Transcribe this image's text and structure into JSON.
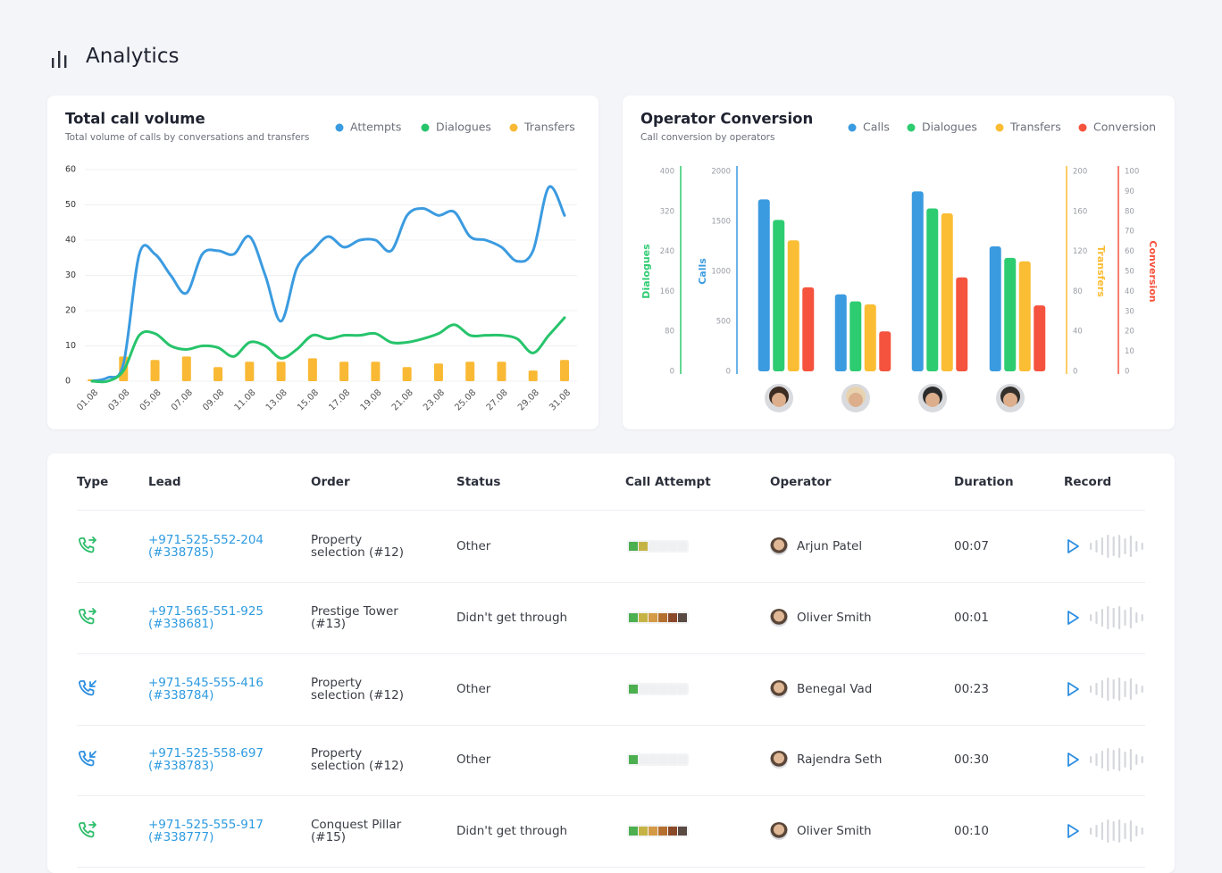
{
  "header": {
    "title": "Analytics"
  },
  "chart_data": [
    {
      "type": "line",
      "title": "Total call volume",
      "subtitle": "Total volume of calls by conversations and transfers",
      "categories": [
        "01.08",
        null,
        "03.08",
        null,
        "05.08",
        null,
        "07.08",
        null,
        "09.08",
        null,
        "11.08",
        null,
        "13.08",
        null,
        "15.08",
        null,
        "17.08",
        null,
        "19.08",
        null,
        "21.08",
        null,
        "23.08",
        null,
        "25.08",
        null,
        "27.08",
        null,
        "29.08",
        null,
        "31.08"
      ],
      "series": [
        {
          "name": "Attempts",
          "color": "#3b9be0",
          "type": "line",
          "values": [
            0,
            1,
            5,
            36,
            36,
            30,
            25,
            36,
            37,
            36,
            41,
            30,
            17,
            32,
            37,
            41,
            38,
            40,
            40,
            37,
            47,
            49,
            47,
            48,
            41,
            40,
            38,
            34,
            37,
            55,
            47
          ]
        },
        {
          "name": "Dialogues",
          "color": "#27c46b",
          "type": "line",
          "values": [
            0,
            0,
            3,
            13,
            13.5,
            10,
            9,
            10,
            9.5,
            7,
            11,
            10,
            6.5,
            9,
            13,
            12,
            13,
            13,
            13.5,
            11,
            11,
            12,
            13.5,
            16,
            13,
            13,
            13,
            12,
            8,
            13,
            18
          ]
        },
        {
          "name": "Transfers",
          "color": "#f9b934",
          "type": "bar",
          "values": [
            0.5,
            null,
            7,
            null,
            6,
            null,
            7,
            null,
            4,
            null,
            5.5,
            null,
            5.5,
            null,
            6.5,
            null,
            5.5,
            null,
            5.5,
            null,
            4,
            null,
            5,
            null,
            5.5,
            null,
            5.5,
            null,
            3,
            null,
            6
          ]
        }
      ],
      "ylim": [
        0,
        60
      ],
      "yticks": [
        0,
        10,
        20,
        30,
        40,
        50,
        60
      ],
      "grid": true
    },
    {
      "type": "bar",
      "title": "Operator Conversion",
      "subtitle": "Call conversion by operators",
      "categories": [
        null,
        null,
        null,
        null
      ],
      "axes": [
        {
          "label": "Dialogues",
          "lim": [
            0,
            400
          ],
          "ticks": [
            0,
            80,
            160,
            240,
            320,
            400
          ]
        },
        {
          "label": "Calls",
          "lim": [
            0,
            2000
          ],
          "ticks": [
            0,
            500,
            1000,
            1500,
            2000
          ]
        },
        {
          "label": "Transfers",
          "lim": [
            0,
            200
          ],
          "ticks": [
            0,
            40,
            80,
            120,
            160,
            200
          ]
        },
        {
          "label": "Conversion",
          "lim": [
            0,
            100
          ],
          "ticks": [
            0,
            10,
            20,
            30,
            40,
            50,
            60,
            70,
            80,
            90,
            100
          ]
        }
      ],
      "series": [
        {
          "name": "Calls",
          "color": "#3b9be0",
          "axis": 1,
          "values": [
            1720,
            770,
            1800,
            1250
          ]
        },
        {
          "name": "Dialogues",
          "color": "#2ecc71",
          "axis": 0,
          "values": [
            303,
            140,
            326,
            227
          ]
        },
        {
          "name": "Transfers",
          "color": "#fbbd33",
          "axis": 2,
          "values": [
            131,
            67,
            158,
            110
          ]
        },
        {
          "name": "Conversion",
          "color": "#f5533d",
          "axis": 3,
          "values": [
            42,
            20,
            47,
            33
          ]
        }
      ]
    }
  ],
  "table": {
    "columns": [
      "Type",
      "Lead",
      "Order",
      "Status",
      "Call Attempt",
      "Operator",
      "Duration",
      "Record"
    ],
    "rows": [
      {
        "lead": "+971-525-552-204",
        "lead_id": "(#338785)",
        "order": "Property selection (#12)",
        "status": "Other",
        "attempts": 2,
        "operator": "Arjun Patel",
        "duration": "00:07"
      },
      {
        "lead": "+971-565-551-925",
        "lead_id": "(#338681)",
        "order": "Prestige Tower (#13)",
        "status": "Didn't get through",
        "attempts": 6,
        "operator": "Oliver Smith",
        "duration": "00:01"
      },
      {
        "lead": "+971-545-555-416",
        "lead_id": "(#338784)",
        "order": "Property selection (#12)",
        "status": "Other",
        "attempts": 1,
        "operator": "Benegal Vad",
        "duration": "00:23"
      },
      {
        "lead": "+971-525-558-697",
        "lead_id": "(#338783)",
        "order": "Property selection (#12)",
        "status": "Other",
        "attempts": 1,
        "operator": "Rajendra Seth",
        "duration": "00:30"
      },
      {
        "lead": "+971-525-555-917",
        "lead_id": "(#338777)",
        "order": "Conquest Pillar (#15)",
        "status": "Didn't get through",
        "attempts": 6,
        "operator": "Oliver Smith",
        "duration": "00:10"
      }
    ]
  }
}
